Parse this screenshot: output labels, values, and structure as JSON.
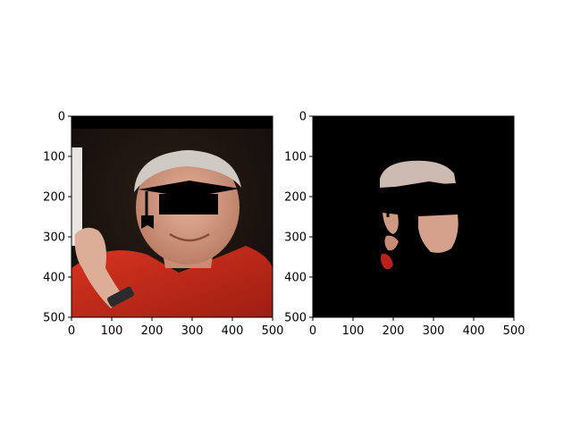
{
  "chart_data": [
    {
      "type": "image",
      "content": "photo of a smiling grey-haired man in a red shirt with a black graduation-cap overlay covering his eyes",
      "x_range": [
        0,
        500
      ],
      "y_range": [
        0,
        500
      ],
      "y_inverted": true,
      "xticks": [
        0,
        100,
        200,
        300,
        400,
        500
      ],
      "yticks": [
        0,
        100,
        200,
        300,
        400,
        500
      ],
      "tick_labels": [
        "0",
        "100",
        "200",
        "300",
        "400",
        "500"
      ],
      "grid": false
    },
    {
      "type": "image",
      "content": "segmentation mask of the same face: visible skin regions on a black background with the graduation cap blacked out",
      "x_range": [
        0,
        500
      ],
      "y_range": [
        0,
        500
      ],
      "y_inverted": true,
      "xticks": [
        0,
        100,
        200,
        300,
        400,
        500
      ],
      "yticks": [
        0,
        100,
        200,
        300,
        400,
        500
      ],
      "tick_labels": [
        "0",
        "100",
        "200",
        "300",
        "400",
        "500"
      ],
      "grid": false
    }
  ],
  "colors": {
    "background": "#ffffff",
    "shirt_red": "#c0281a",
    "skin": "#d9a58c",
    "hair": "#c9c5c0",
    "photo_background": "#1c1410",
    "cap_black": "#000000"
  }
}
